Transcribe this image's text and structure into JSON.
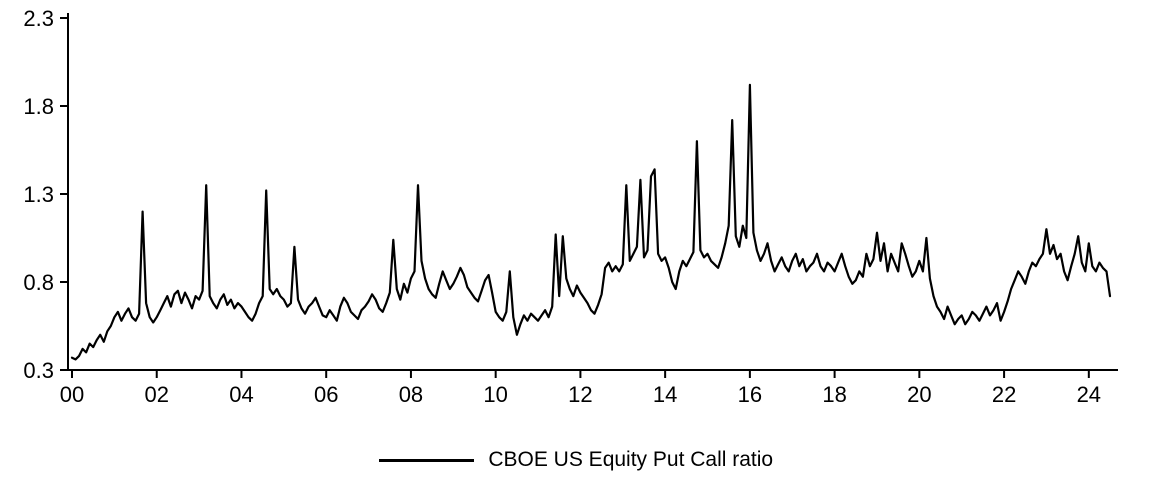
{
  "chart_data": {
    "type": "line",
    "title": "",
    "xlabel": "",
    "ylabel": "",
    "legend": "CBOE US Equity Put Call ratio",
    "legend_position": "bottom",
    "series_color": "#000000",
    "grid": false,
    "ylim": [
      0.3,
      2.3
    ],
    "x_start_year": 2000,
    "x_step_months": 1,
    "y_ticks": [
      {
        "value": 0.3,
        "label": "0.3"
      },
      {
        "value": 0.8,
        "label": "0.8"
      },
      {
        "value": 1.3,
        "label": "1.3"
      },
      {
        "value": 1.8,
        "label": "1.8"
      },
      {
        "value": 2.3,
        "label": "2.3"
      }
    ],
    "x_ticks": [
      {
        "year": 2000,
        "label": "00"
      },
      {
        "year": 2002,
        "label": "02"
      },
      {
        "year": 2004,
        "label": "04"
      },
      {
        "year": 2006,
        "label": "06"
      },
      {
        "year": 2008,
        "label": "08"
      },
      {
        "year": 2010,
        "label": "10"
      },
      {
        "year": 2012,
        "label": "12"
      },
      {
        "year": 2014,
        "label": "14"
      },
      {
        "year": 2016,
        "label": "16"
      },
      {
        "year": 2018,
        "label": "18"
      },
      {
        "year": 2020,
        "label": "20"
      },
      {
        "year": 2022,
        "label": "22"
      },
      {
        "year": 2024,
        "label": "24"
      }
    ],
    "values": [
      0.37,
      0.36,
      0.38,
      0.42,
      0.4,
      0.45,
      0.43,
      0.47,
      0.5,
      0.46,
      0.52,
      0.55,
      0.6,
      0.63,
      0.58,
      0.62,
      0.65,
      0.6,
      0.58,
      0.62,
      1.2,
      0.68,
      0.6,
      0.57,
      0.6,
      0.64,
      0.68,
      0.72,
      0.66,
      0.73,
      0.75,
      0.68,
      0.74,
      0.7,
      0.65,
      0.72,
      0.7,
      0.75,
      1.35,
      0.72,
      0.68,
      0.65,
      0.7,
      0.73,
      0.67,
      0.7,
      0.65,
      0.68,
      0.66,
      0.63,
      0.6,
      0.58,
      0.62,
      0.68,
      0.72,
      1.32,
      0.76,
      0.73,
      0.76,
      0.72,
      0.7,
      0.66,
      0.68,
      1.0,
      0.7,
      0.65,
      0.62,
      0.66,
      0.68,
      0.71,
      0.66,
      0.61,
      0.6,
      0.64,
      0.61,
      0.58,
      0.66,
      0.71,
      0.68,
      0.63,
      0.61,
      0.59,
      0.64,
      0.66,
      0.69,
      0.73,
      0.7,
      0.65,
      0.63,
      0.68,
      0.74,
      1.04,
      0.76,
      0.7,
      0.79,
      0.74,
      0.82,
      0.86,
      1.35,
      0.92,
      0.82,
      0.76,
      0.73,
      0.71,
      0.79,
      0.86,
      0.81,
      0.76,
      0.79,
      0.83,
      0.88,
      0.84,
      0.77,
      0.74,
      0.71,
      0.69,
      0.75,
      0.81,
      0.84,
      0.74,
      0.63,
      0.6,
      0.58,
      0.63,
      0.86,
      0.6,
      0.5,
      0.56,
      0.61,
      0.58,
      0.62,
      0.6,
      0.58,
      0.61,
      0.64,
      0.6,
      0.66,
      1.07,
      0.72,
      1.06,
      0.82,
      0.76,
      0.72,
      0.78,
      0.74,
      0.71,
      0.68,
      0.64,
      0.62,
      0.67,
      0.73,
      0.88,
      0.91,
      0.86,
      0.89,
      0.86,
      0.9,
      1.35,
      0.92,
      0.96,
      1.0,
      1.38,
      0.94,
      0.98,
      1.4,
      1.44,
      0.96,
      0.92,
      0.94,
      0.88,
      0.8,
      0.76,
      0.86,
      0.92,
      0.89,
      0.93,
      0.97,
      1.6,
      0.98,
      0.94,
      0.96,
      0.92,
      0.9,
      0.88,
      0.94,
      1.02,
      1.12,
      1.72,
      1.06,
      1.0,
      1.12,
      1.05,
      1.92,
      1.08,
      0.98,
      0.92,
      0.96,
      1.02,
      0.92,
      0.86,
      0.9,
      0.94,
      0.89,
      0.86,
      0.92,
      0.96,
      0.89,
      0.93,
      0.86,
      0.89,
      0.91,
      0.96,
      0.89,
      0.86,
      0.91,
      0.89,
      0.86,
      0.91,
      0.96,
      0.89,
      0.83,
      0.79,
      0.81,
      0.86,
      0.83,
      0.96,
      0.89,
      0.93,
      1.08,
      0.92,
      1.02,
      0.86,
      0.96,
      0.91,
      0.86,
      1.02,
      0.96,
      0.89,
      0.83,
      0.86,
      0.92,
      0.86,
      1.05,
      0.82,
      0.72,
      0.66,
      0.63,
      0.59,
      0.66,
      0.61,
      0.56,
      0.59,
      0.61,
      0.56,
      0.59,
      0.63,
      0.61,
      0.58,
      0.62,
      0.66,
      0.61,
      0.64,
      0.68,
      0.58,
      0.63,
      0.69,
      0.76,
      0.81,
      0.86,
      0.83,
      0.79,
      0.86,
      0.91,
      0.89,
      0.93,
      0.96,
      1.1,
      0.96,
      1.01,
      0.93,
      0.96,
      0.86,
      0.81,
      0.89,
      0.96,
      1.06,
      0.91,
      0.86,
      1.02,
      0.89,
      0.86,
      0.91,
      0.88,
      0.86,
      0.72
    ]
  }
}
